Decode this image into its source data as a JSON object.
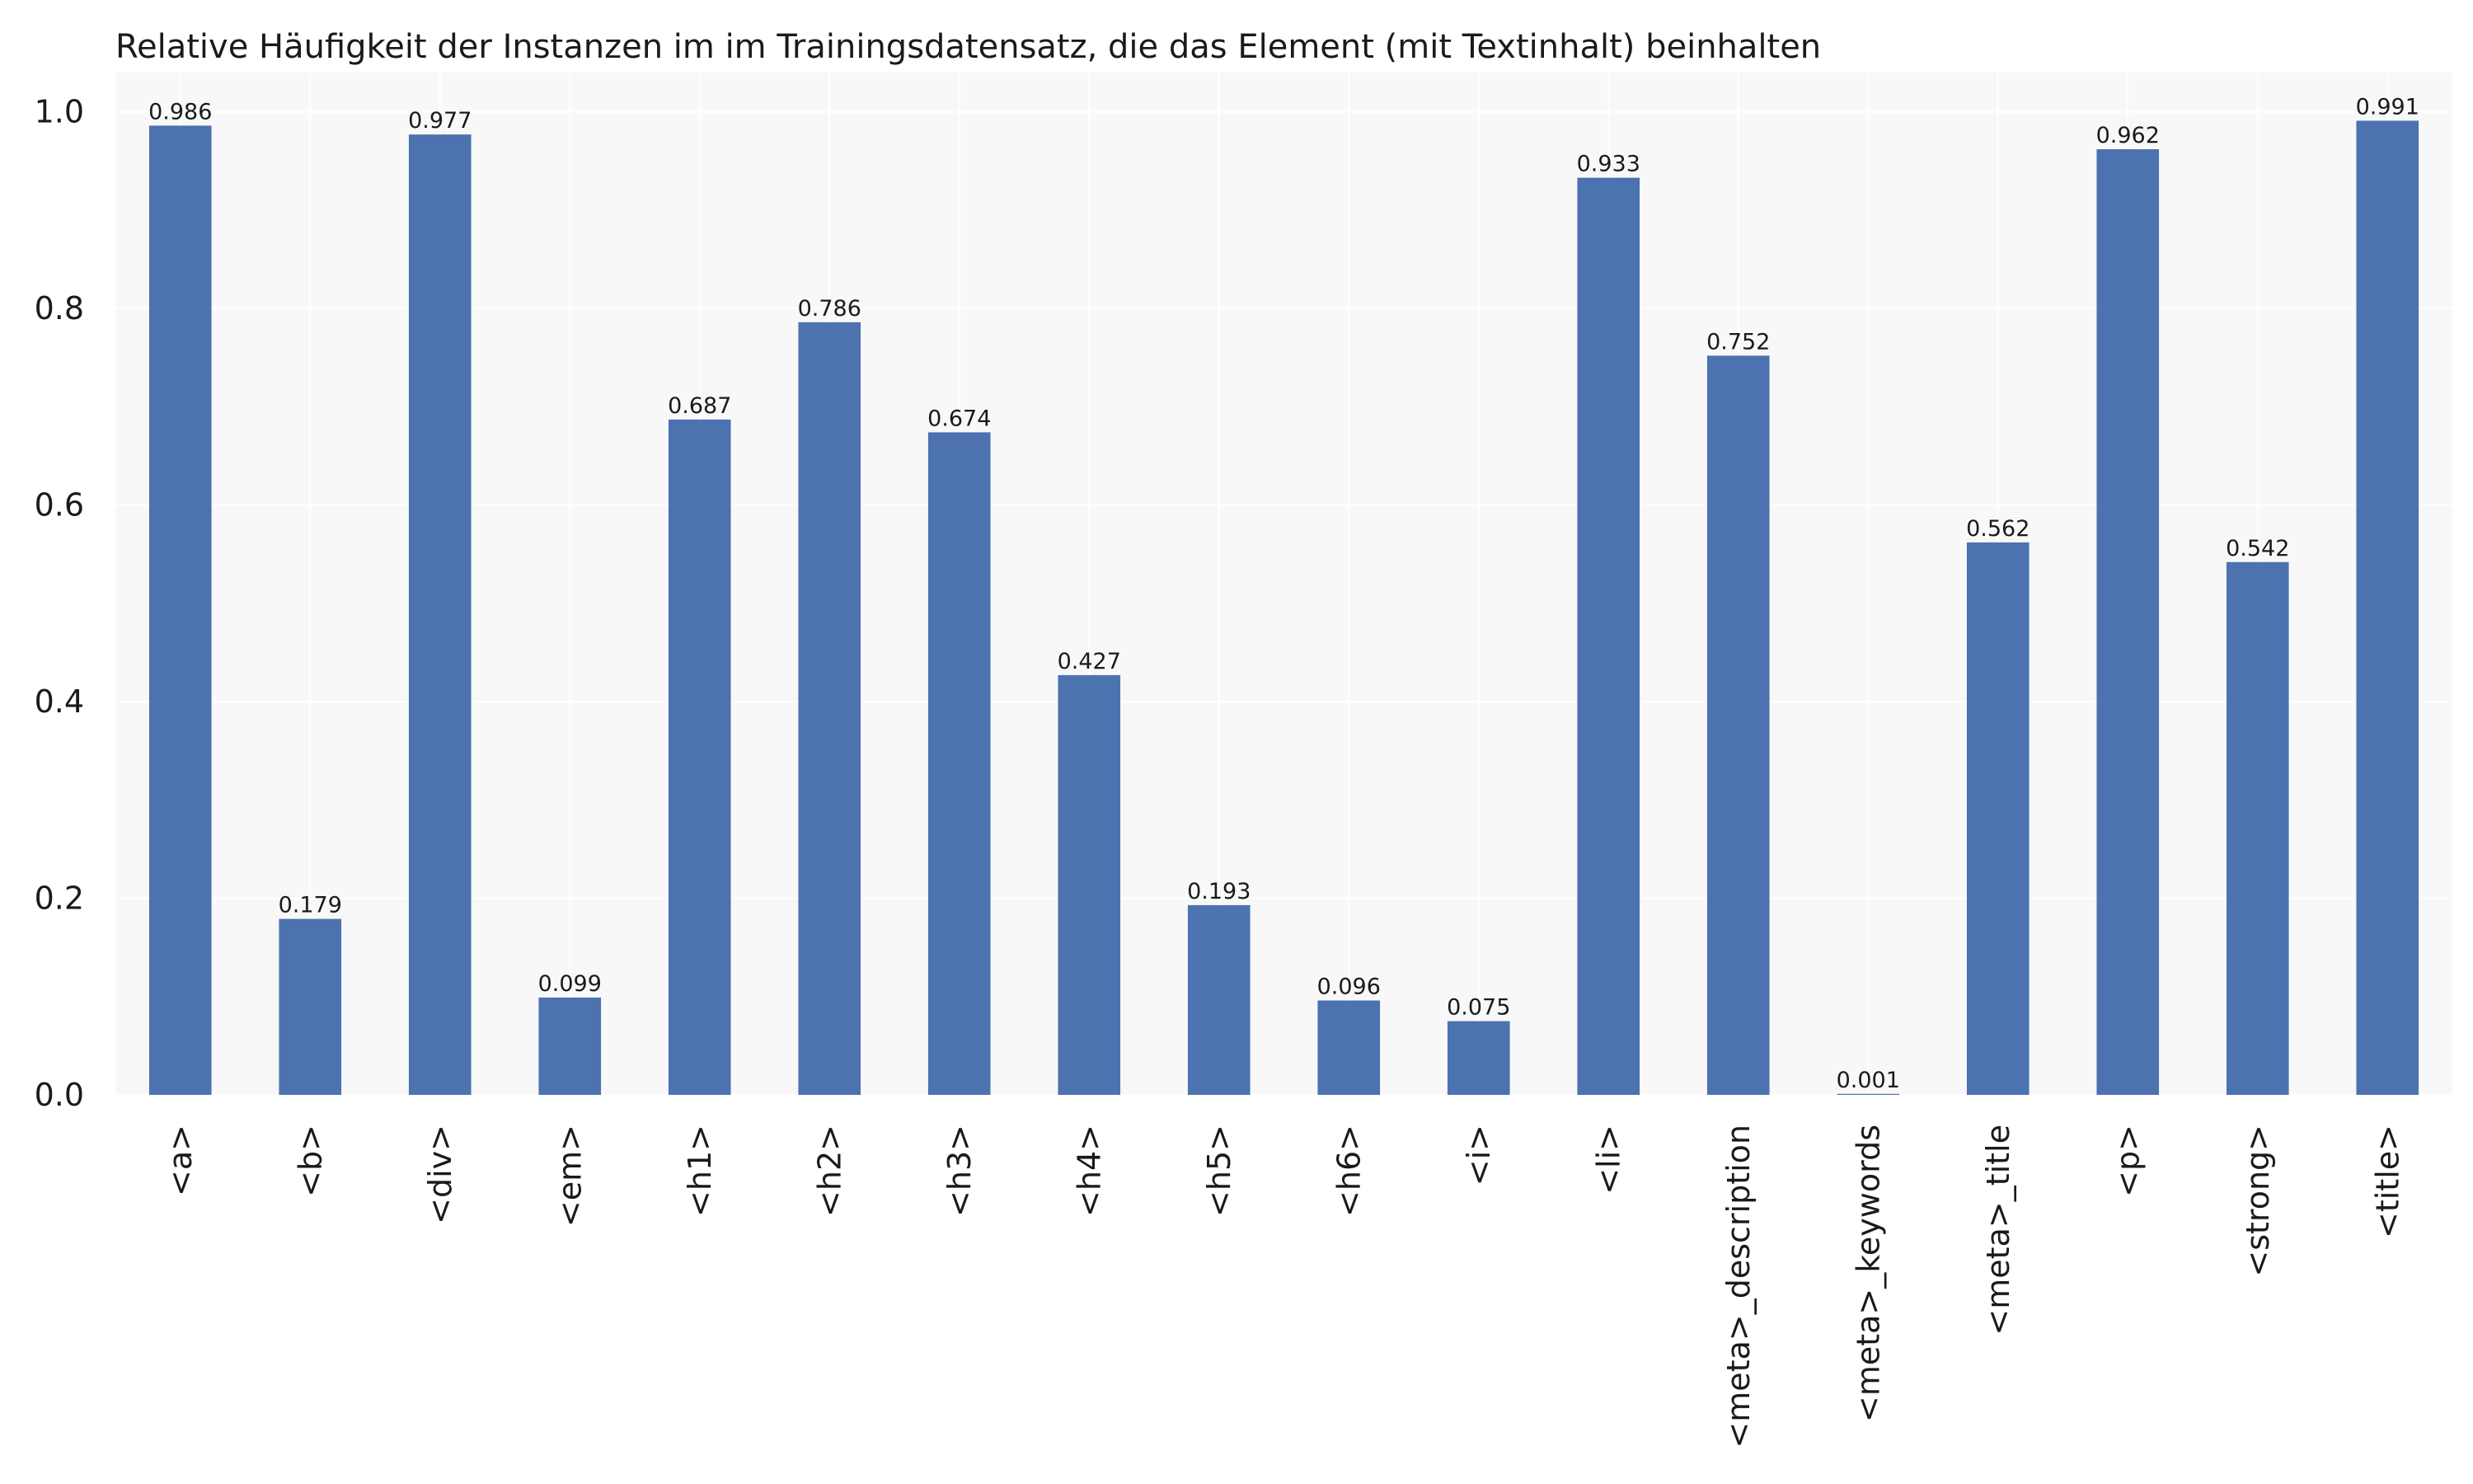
{
  "chart_data": {
    "type": "bar",
    "title": "Relative Häufigkeit der Instanzen im im Trainingsdatensatz, die das Element (mit Textinhalt) beinhalten",
    "xlabel": "",
    "ylabel": "",
    "categories": [
      "<a>",
      "<b>",
      "<div>",
      "<em>",
      "<h1>",
      "<h2>",
      "<h3>",
      "<h4>",
      "<h5>",
      "<h6>",
      "<i>",
      "<li>",
      "<meta>_description",
      "<meta>_keywords",
      "<meta>_title",
      "<p>",
      "<strong>",
      "<title>"
    ],
    "values": [
      0.986,
      0.179,
      0.977,
      0.099,
      0.687,
      0.786,
      0.674,
      0.427,
      0.193,
      0.096,
      0.075,
      0.933,
      0.752,
      0.001,
      0.562,
      0.962,
      0.542,
      0.991
    ],
    "data_labels": [
      "0.986",
      "0.179",
      "0.977",
      "0.099",
      "0.687",
      "0.786",
      "0.674",
      "0.427",
      "0.193",
      "0.096",
      "0.075",
      "0.933",
      "0.752",
      "0.001",
      "0.562",
      "0.962",
      "0.542",
      "0.991"
    ],
    "ylim": [
      0,
      1.04
    ],
    "yticks": [
      "0.0",
      "0.2",
      "0.4",
      "0.6",
      "0.8",
      "1.0"
    ],
    "grid": true,
    "legend": "none",
    "bar_color": "#4c72b0",
    "plot_background": "#f8f8f8"
  }
}
